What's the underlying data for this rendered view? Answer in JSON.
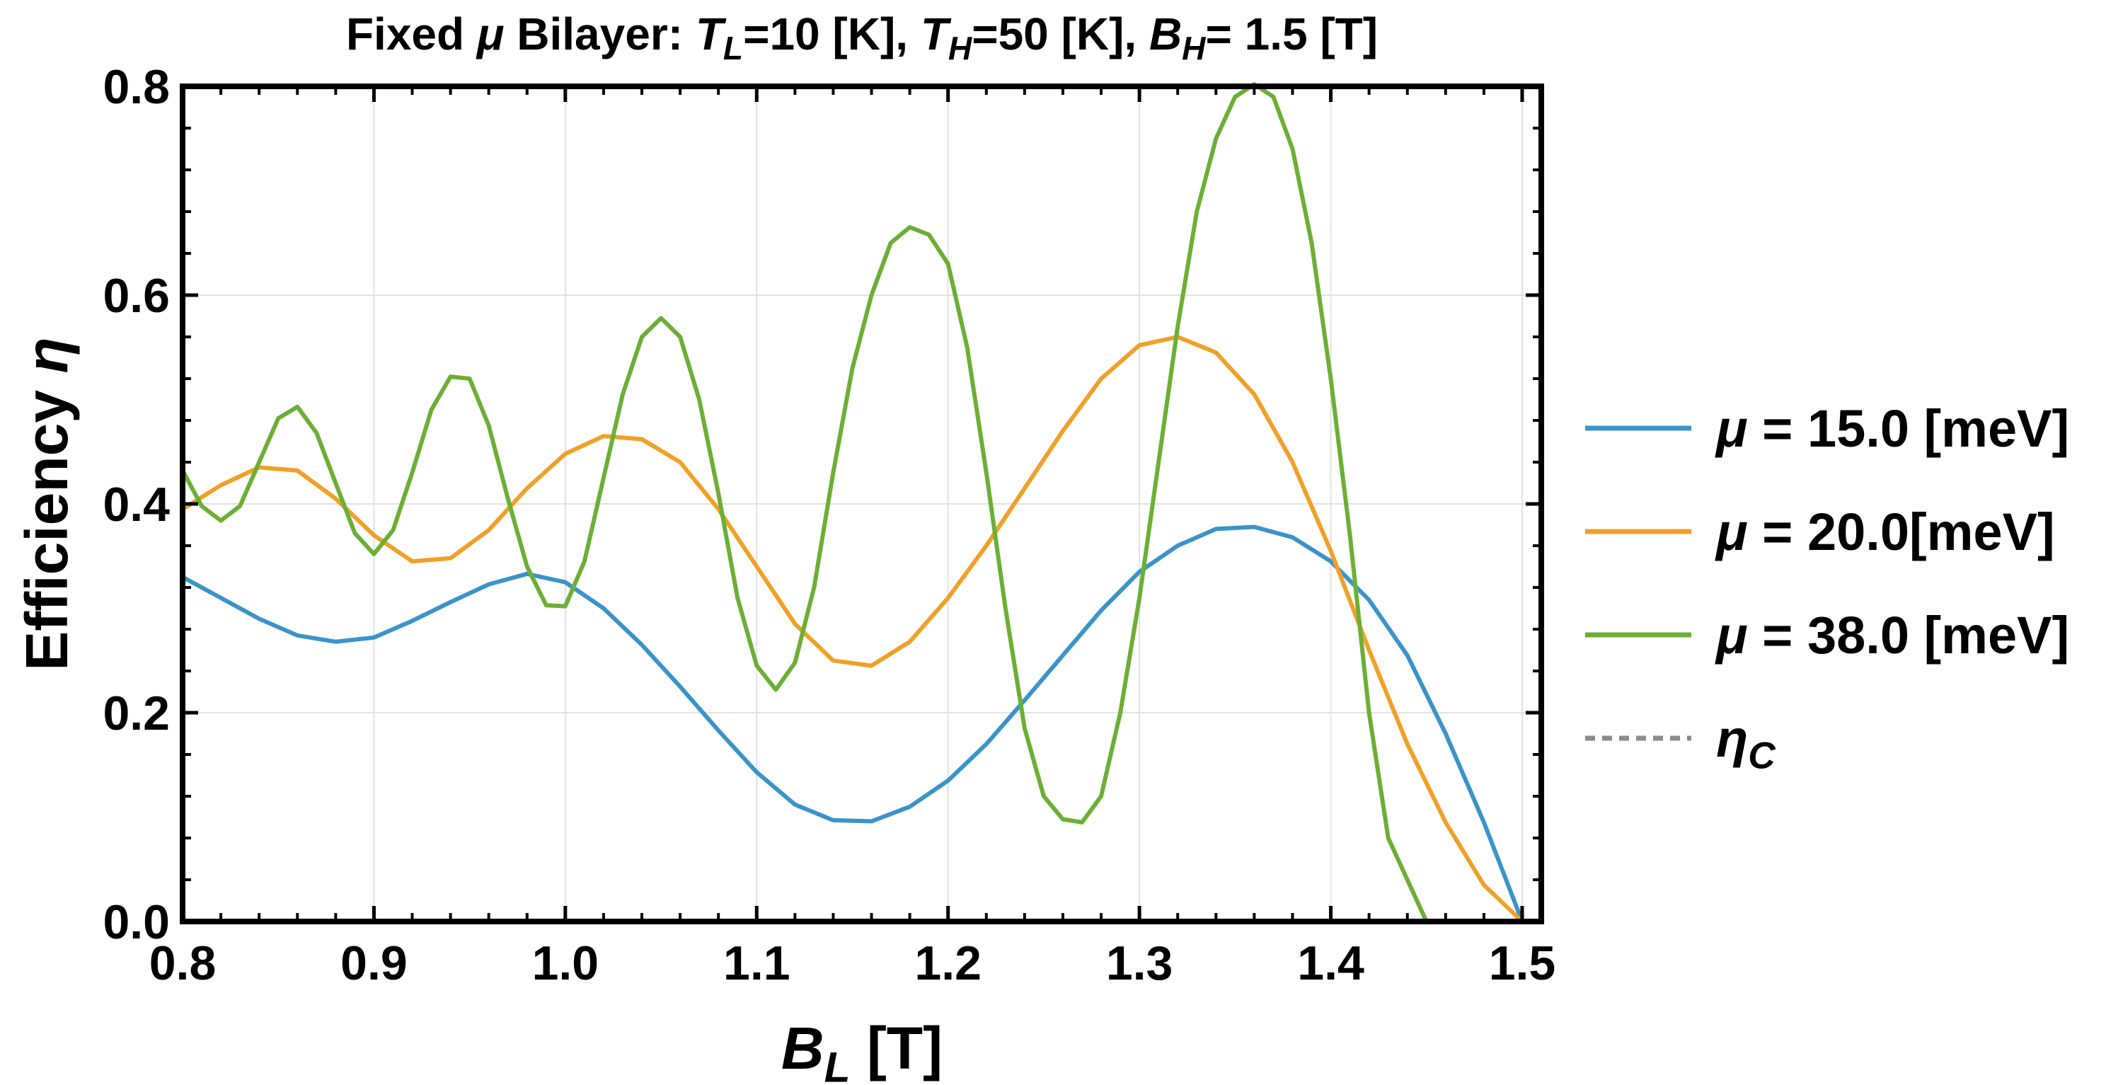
{
  "chart_data": {
    "type": "line",
    "title": {
      "segments": [
        {
          "text": "Fixed ",
          "italic": false
        },
        {
          "text": "μ",
          "italic": true
        },
        {
          "text": " Bilayer: ",
          "italic": false
        },
        {
          "text": "T",
          "italic": true
        },
        {
          "text": "L",
          "italic": true,
          "sub": true
        },
        {
          "text": "=10 [K], ",
          "italic": false
        },
        {
          "text": "T",
          "italic": true
        },
        {
          "text": "H",
          "italic": true,
          "sub": true
        },
        {
          "text": "=50 [K], ",
          "italic": false
        },
        {
          "text": "B",
          "italic": true
        },
        {
          "text": "H",
          "italic": true,
          "sub": true
        },
        {
          "text": "= 1.5 [T]",
          "italic": false
        }
      ]
    },
    "xlabel": {
      "segments": [
        {
          "text": "B",
          "italic": true
        },
        {
          "text": "L",
          "italic": true,
          "sub": true
        },
        {
          "text": " [T]",
          "italic": false
        }
      ]
    },
    "ylabel": {
      "segments": [
        {
          "text": "Efficiency ",
          "italic": false
        },
        {
          "text": "η",
          "italic": true
        }
      ]
    },
    "xlim": [
      0.8,
      1.51
    ],
    "ylim": [
      0.0,
      0.8
    ],
    "xticks": [
      "0.8",
      "0.9",
      "1.0",
      "1.1",
      "1.2",
      "1.3",
      "1.4",
      "1.5"
    ],
    "yticks": [
      "0.0",
      "0.2",
      "0.4",
      "0.6",
      "0.8"
    ],
    "grid": true,
    "legend_position": "right",
    "series": [
      {
        "name": "μ = 15.0 [meV]",
        "legend": [
          {
            "text": "μ",
            "italic": true
          },
          {
            "text": " = 15.0 [meV]",
            "italic": false
          }
        ],
        "color": "#3b94c9",
        "style": "solid",
        "points": [
          [
            0.8,
            0.33
          ],
          [
            0.82,
            0.31
          ],
          [
            0.84,
            0.29
          ],
          [
            0.86,
            0.274
          ],
          [
            0.88,
            0.268
          ],
          [
            0.9,
            0.272
          ],
          [
            0.92,
            0.288
          ],
          [
            0.94,
            0.306
          ],
          [
            0.96,
            0.323
          ],
          [
            0.98,
            0.333
          ],
          [
            1.0,
            0.325
          ],
          [
            1.02,
            0.3
          ],
          [
            1.04,
            0.265
          ],
          [
            1.06,
            0.225
          ],
          [
            1.08,
            0.183
          ],
          [
            1.1,
            0.143
          ],
          [
            1.12,
            0.112
          ],
          [
            1.14,
            0.097
          ],
          [
            1.16,
            0.096
          ],
          [
            1.18,
            0.11
          ],
          [
            1.2,
            0.135
          ],
          [
            1.22,
            0.17
          ],
          [
            1.24,
            0.212
          ],
          [
            1.26,
            0.255
          ],
          [
            1.28,
            0.298
          ],
          [
            1.3,
            0.335
          ],
          [
            1.32,
            0.36
          ],
          [
            1.34,
            0.376
          ],
          [
            1.36,
            0.378
          ],
          [
            1.38,
            0.368
          ],
          [
            1.4,
            0.345
          ],
          [
            1.42,
            0.308
          ],
          [
            1.44,
            0.255
          ],
          [
            1.46,
            0.18
          ],
          [
            1.48,
            0.095
          ],
          [
            1.5,
            0.0
          ]
        ]
      },
      {
        "name": "μ = 20.0[meV]",
        "legend": [
          {
            "text": "μ",
            "italic": true
          },
          {
            "text": " = 20.0[meV]",
            "italic": false
          }
        ],
        "color": "#f0a128",
        "style": "solid",
        "points": [
          [
            0.8,
            0.395
          ],
          [
            0.82,
            0.418
          ],
          [
            0.84,
            0.435
          ],
          [
            0.86,
            0.432
          ],
          [
            0.88,
            0.405
          ],
          [
            0.9,
            0.37
          ],
          [
            0.92,
            0.345
          ],
          [
            0.94,
            0.348
          ],
          [
            0.96,
            0.375
          ],
          [
            0.98,
            0.415
          ],
          [
            1.0,
            0.448
          ],
          [
            1.02,
            0.465
          ],
          [
            1.04,
            0.462
          ],
          [
            1.06,
            0.44
          ],
          [
            1.08,
            0.395
          ],
          [
            1.1,
            0.34
          ],
          [
            1.12,
            0.285
          ],
          [
            1.14,
            0.25
          ],
          [
            1.16,
            0.245
          ],
          [
            1.18,
            0.268
          ],
          [
            1.2,
            0.31
          ],
          [
            1.22,
            0.36
          ],
          [
            1.24,
            0.415
          ],
          [
            1.26,
            0.47
          ],
          [
            1.28,
            0.52
          ],
          [
            1.3,
            0.552
          ],
          [
            1.32,
            0.56
          ],
          [
            1.34,
            0.545
          ],
          [
            1.36,
            0.505
          ],
          [
            1.38,
            0.44
          ],
          [
            1.4,
            0.355
          ],
          [
            1.42,
            0.26
          ],
          [
            1.44,
            0.17
          ],
          [
            1.46,
            0.095
          ],
          [
            1.48,
            0.035
          ],
          [
            1.5,
            0.0
          ]
        ]
      },
      {
        "name": "μ = 38.0 [meV]",
        "legend": [
          {
            "text": "μ",
            "italic": true
          },
          {
            "text": " = 38.0 [meV]",
            "italic": false
          }
        ],
        "color": "#6caf35",
        "style": "solid",
        "points": [
          [
            0.8,
            0.432
          ],
          [
            0.81,
            0.398
          ],
          [
            0.82,
            0.384
          ],
          [
            0.83,
            0.398
          ],
          [
            0.84,
            0.44
          ],
          [
            0.85,
            0.482
          ],
          [
            0.86,
            0.493
          ],
          [
            0.87,
            0.468
          ],
          [
            0.88,
            0.42
          ],
          [
            0.89,
            0.372
          ],
          [
            0.9,
            0.352
          ],
          [
            0.91,
            0.375
          ],
          [
            0.92,
            0.43
          ],
          [
            0.93,
            0.49
          ],
          [
            0.94,
            0.522
          ],
          [
            0.95,
            0.52
          ],
          [
            0.96,
            0.475
          ],
          [
            0.97,
            0.405
          ],
          [
            0.98,
            0.34
          ],
          [
            0.99,
            0.303
          ],
          [
            1.0,
            0.302
          ],
          [
            1.01,
            0.345
          ],
          [
            1.02,
            0.425
          ],
          [
            1.03,
            0.505
          ],
          [
            1.04,
            0.56
          ],
          [
            1.05,
            0.578
          ],
          [
            1.06,
            0.56
          ],
          [
            1.07,
            0.5
          ],
          [
            1.08,
            0.41
          ],
          [
            1.09,
            0.31
          ],
          [
            1.1,
            0.245
          ],
          [
            1.11,
            0.222
          ],
          [
            1.12,
            0.248
          ],
          [
            1.13,
            0.32
          ],
          [
            1.14,
            0.43
          ],
          [
            1.15,
            0.53
          ],
          [
            1.16,
            0.6
          ],
          [
            1.17,
            0.65
          ],
          [
            1.18,
            0.665
          ],
          [
            1.19,
            0.658
          ],
          [
            1.2,
            0.63
          ],
          [
            1.21,
            0.55
          ],
          [
            1.22,
            0.43
          ],
          [
            1.23,
            0.3
          ],
          [
            1.24,
            0.185
          ],
          [
            1.25,
            0.12
          ],
          [
            1.26,
            0.098
          ],
          [
            1.27,
            0.095
          ],
          [
            1.28,
            0.12
          ],
          [
            1.29,
            0.2
          ],
          [
            1.3,
            0.31
          ],
          [
            1.31,
            0.44
          ],
          [
            1.32,
            0.57
          ],
          [
            1.33,
            0.68
          ],
          [
            1.34,
            0.75
          ],
          [
            1.35,
            0.79
          ],
          [
            1.36,
            0.802
          ],
          [
            1.37,
            0.79
          ],
          [
            1.38,
            0.74
          ],
          [
            1.39,
            0.65
          ],
          [
            1.4,
            0.52
          ],
          [
            1.41,
            0.37
          ],
          [
            1.42,
            0.2
          ],
          [
            1.43,
            0.08
          ],
          [
            1.45,
            0.0
          ]
        ]
      },
      {
        "name": "ηC",
        "legend": [
          {
            "text": "η",
            "italic": true
          },
          {
            "text": "C",
            "italic": true,
            "sub": true
          }
        ],
        "color": "#8c8c8c",
        "style": "dashed",
        "points": [
          [
            0.8,
            0.8
          ],
          [
            1.51,
            0.8
          ]
        ]
      }
    ],
    "colors": {
      "axis": "#000000",
      "grid": "#e2e2e2"
    }
  }
}
